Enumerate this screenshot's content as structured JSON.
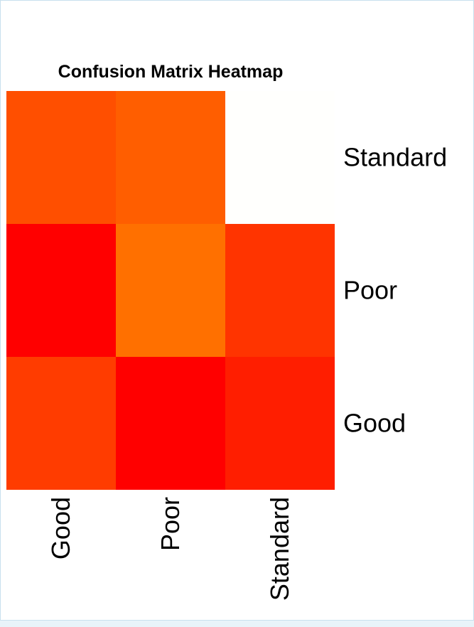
{
  "chart_data": {
    "type": "heatmap",
    "title": "Confusion Matrix Heatmap",
    "x_categories": [
      "Good",
      "Poor",
      "Standard"
    ],
    "y_categories": [
      "Good",
      "Poor",
      "Standard"
    ],
    "cell_colors": [
      [
        "#ff3c00",
        "#ff0000",
        "#ff1e00"
      ],
      [
        "#ff0000",
        "#ff7000",
        "#ff3400"
      ],
      [
        "#ff4f00",
        "#ff5e00",
        "#fffffd"
      ]
    ],
    "color_scale": "heat",
    "legend": "none"
  }
}
